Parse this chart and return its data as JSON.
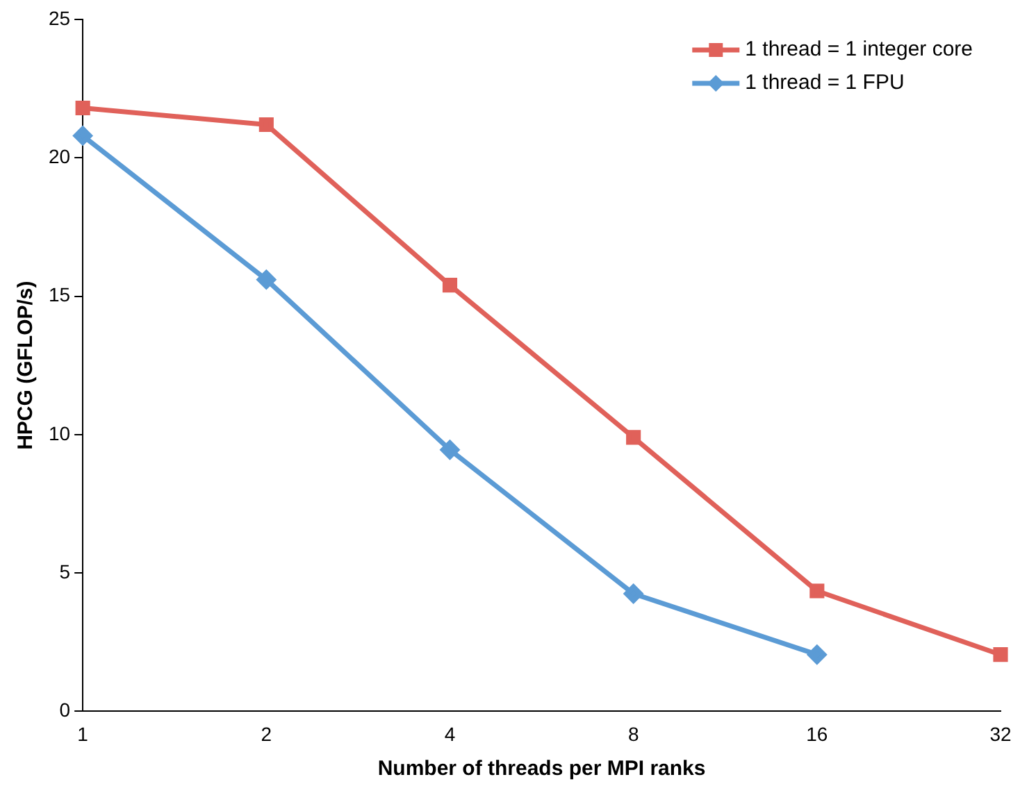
{
  "chart_data": {
    "type": "line",
    "xlabel": "Number of threads per MPI ranks",
    "ylabel": "HPCG (GFLOP/s)",
    "categories": [
      "1",
      "2",
      "4",
      "8",
      "16",
      "32"
    ],
    "series": [
      {
        "name": "1 thread = 1 integer core",
        "color": "#e0615a",
        "marker": "square",
        "values": [
          21.8,
          21.2,
          15.4,
          9.9,
          4.35,
          2.05
        ]
      },
      {
        "name": "1 thread = 1 FPU",
        "color": "#5b9bd5",
        "marker": "diamond",
        "values": [
          20.8,
          15.6,
          9.45,
          4.25,
          2.05,
          null
        ]
      }
    ],
    "ylim": [
      0,
      25
    ],
    "yticks": [
      0,
      5,
      10,
      15,
      20,
      25
    ],
    "grid": false,
    "legend": "top right",
    "line_style": "solid"
  }
}
